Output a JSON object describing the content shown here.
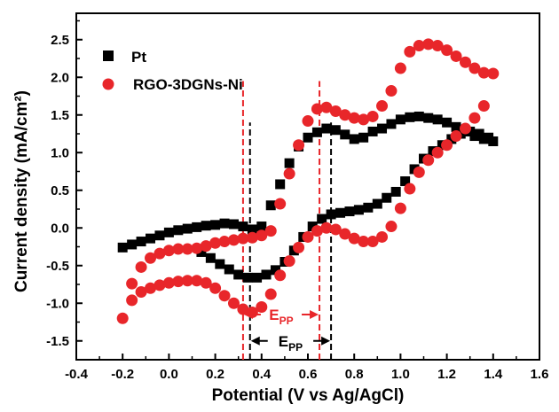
{
  "chart_data": {
    "type": "scatter",
    "xlabel": "Potential (V vs Ag/AgCl)",
    "ylabel": "Current density (mA/cm²)",
    "xlim": [
      -0.4,
      1.6
    ],
    "ylim": [
      -1.75,
      2.85
    ],
    "xticks": [
      -0.4,
      -0.2,
      0.0,
      0.2,
      0.4,
      0.6,
      0.8,
      1.0,
      1.2,
      1.4,
      1.6
    ],
    "xtick_labels": [
      "-0.4",
      "-0.2",
      "0.0",
      "0.2",
      "0.4",
      "0.6",
      "0.8",
      "1.0",
      "1.2",
      "1.4",
      "1.6"
    ],
    "yticks": [
      -1.5,
      -1.0,
      -0.5,
      0.0,
      0.5,
      1.0,
      1.5,
      2.0,
      2.5
    ],
    "ytick_labels": [
      "-1.5",
      "-1.0",
      "-0.5",
      "0.0",
      "0.5",
      "1.0",
      "1.5",
      "2.0",
      "2.5"
    ],
    "grid": false,
    "legend_position": "top-left",
    "series": [
      {
        "name": "Pt",
        "marker": "square",
        "color": "#000000",
        "points": [
          [
            -0.2,
            -0.26
          ],
          [
            -0.16,
            -0.22
          ],
          [
            -0.12,
            -0.18
          ],
          [
            -0.08,
            -0.14
          ],
          [
            -0.04,
            -0.1
          ],
          [
            0.0,
            -0.06
          ],
          [
            0.04,
            -0.03
          ],
          [
            0.08,
            -0.01
          ],
          [
            0.12,
            0.01
          ],
          [
            0.16,
            0.03
          ],
          [
            0.2,
            0.04
          ],
          [
            0.24,
            0.06
          ],
          [
            0.28,
            0.05
          ],
          [
            0.32,
            0.02
          ],
          [
            0.36,
            -0.02
          ],
          [
            0.4,
            0.02
          ],
          [
            0.44,
            0.3
          ],
          [
            0.48,
            0.58
          ],
          [
            0.52,
            0.86
          ],
          [
            0.56,
            1.08
          ],
          [
            0.6,
            1.2
          ],
          [
            0.64,
            1.27
          ],
          [
            0.68,
            1.32
          ],
          [
            0.72,
            1.3
          ],
          [
            0.76,
            1.24
          ],
          [
            0.8,
            1.18
          ],
          [
            0.84,
            1.2
          ],
          [
            0.88,
            1.28
          ],
          [
            0.92,
            1.32
          ],
          [
            0.96,
            1.38
          ],
          [
            1.0,
            1.44
          ],
          [
            1.04,
            1.47
          ],
          [
            1.08,
            1.48
          ],
          [
            1.12,
            1.46
          ],
          [
            1.16,
            1.44
          ],
          [
            1.2,
            1.4
          ],
          [
            1.24,
            1.34
          ],
          [
            1.28,
            1.28
          ],
          [
            1.32,
            1.22
          ],
          [
            1.36,
            1.18
          ],
          [
            1.4,
            1.15
          ],
          [
            1.38,
            1.2
          ],
          [
            1.34,
            1.25
          ],
          [
            1.3,
            1.28
          ],
          [
            1.26,
            1.25
          ],
          [
            1.22,
            1.18
          ],
          [
            1.18,
            1.1
          ],
          [
            1.14,
            1.02
          ],
          [
            1.1,
            0.92
          ],
          [
            1.06,
            0.78
          ],
          [
            1.02,
            0.62
          ],
          [
            0.98,
            0.48
          ],
          [
            0.94,
            0.4
          ],
          [
            0.9,
            0.32
          ],
          [
            0.86,
            0.27
          ],
          [
            0.82,
            0.24
          ],
          [
            0.78,
            0.22
          ],
          [
            0.74,
            0.2
          ],
          [
            0.7,
            0.18
          ],
          [
            0.66,
            0.12
          ],
          [
            0.62,
            0.02
          ],
          [
            0.58,
            -0.12
          ],
          [
            0.54,
            -0.3
          ],
          [
            0.5,
            -0.45
          ],
          [
            0.46,
            -0.56
          ],
          [
            0.42,
            -0.62
          ],
          [
            0.38,
            -0.66
          ],
          [
            0.34,
            -0.66
          ],
          [
            0.3,
            -0.62
          ],
          [
            0.26,
            -0.55
          ],
          [
            0.22,
            -0.48
          ],
          [
            0.18,
            -0.4
          ],
          [
            0.14,
            -0.32
          ]
        ]
      },
      {
        "name": "RGO-3DGNs-Ni",
        "marker": "circle",
        "color": "#e8262a",
        "points": [
          [
            -0.2,
            -1.2
          ],
          [
            -0.16,
            -0.96
          ],
          [
            -0.12,
            -0.85
          ],
          [
            -0.08,
            -0.8
          ],
          [
            -0.04,
            -0.76
          ],
          [
            0.0,
            -0.73
          ],
          [
            0.04,
            -0.71
          ],
          [
            0.08,
            -0.7
          ],
          [
            0.12,
            -0.7
          ],
          [
            0.16,
            -0.73
          ],
          [
            0.2,
            -0.8
          ],
          [
            0.24,
            -0.9
          ],
          [
            0.28,
            -1.0
          ],
          [
            0.32,
            -1.08
          ],
          [
            0.36,
            -1.12
          ],
          [
            0.4,
            -1.05
          ],
          [
            0.44,
            -0.88
          ],
          [
            0.48,
            -0.63
          ],
          [
            0.52,
            -0.44
          ],
          [
            0.56,
            -0.26
          ],
          [
            0.6,
            -0.12
          ],
          [
            0.64,
            -0.04
          ],
          [
            0.68,
            0.0
          ],
          [
            0.72,
            -0.02
          ],
          [
            0.76,
            -0.08
          ],
          [
            0.8,
            -0.14
          ],
          [
            0.84,
            -0.18
          ],
          [
            0.88,
            -0.18
          ],
          [
            0.92,
            -0.12
          ],
          [
            0.96,
            0.02
          ],
          [
            1.0,
            0.26
          ],
          [
            1.04,
            0.52
          ],
          [
            1.08,
            0.74
          ],
          [
            1.12,
            0.9
          ],
          [
            1.16,
            1.0
          ],
          [
            1.2,
            1.1
          ],
          [
            1.24,
            1.22
          ],
          [
            1.28,
            1.32
          ],
          [
            1.32,
            1.46
          ],
          [
            1.36,
            1.62
          ],
          [
            1.4,
            2.05
          ],
          [
            1.36,
            2.06
          ],
          [
            1.32,
            2.12
          ],
          [
            1.28,
            2.2
          ],
          [
            1.24,
            2.28
          ],
          [
            1.2,
            2.36
          ],
          [
            1.16,
            2.42
          ],
          [
            1.12,
            2.44
          ],
          [
            1.08,
            2.42
          ],
          [
            1.04,
            2.34
          ],
          [
            1.0,
            2.12
          ],
          [
            0.96,
            1.82
          ],
          [
            0.92,
            1.62
          ],
          [
            0.88,
            1.48
          ],
          [
            0.84,
            1.44
          ],
          [
            0.8,
            1.46
          ],
          [
            0.76,
            1.5
          ],
          [
            0.72,
            1.55
          ],
          [
            0.68,
            1.6
          ],
          [
            0.64,
            1.58
          ],
          [
            0.6,
            1.42
          ],
          [
            0.56,
            1.1
          ],
          [
            0.52,
            0.72
          ],
          [
            0.48,
            0.32
          ],
          [
            0.44,
            -0.04
          ],
          [
            0.4,
            -0.1
          ],
          [
            0.36,
            -0.13
          ],
          [
            0.32,
            -0.14
          ],
          [
            0.28,
            -0.16
          ],
          [
            0.24,
            -0.18
          ],
          [
            0.2,
            -0.2
          ],
          [
            0.16,
            -0.24
          ],
          [
            0.12,
            -0.27
          ],
          [
            0.08,
            -0.28
          ],
          [
            0.04,
            -0.28
          ],
          [
            0.0,
            -0.3
          ],
          [
            -0.04,
            -0.34
          ],
          [
            -0.08,
            -0.4
          ],
          [
            -0.12,
            -0.52
          ],
          [
            -0.16,
            -0.74
          ]
        ]
      }
    ],
    "annotations": [
      {
        "name": "epp-rgo",
        "label": "E",
        "subscript": "PP",
        "color": "#e8262a",
        "x_from": 0.32,
        "x_to": 0.65,
        "y": -1.15,
        "line_y_bottom": -1.75,
        "line_y_top": 1.95
      },
      {
        "name": "epp-pt",
        "label": "E",
        "subscript": "PP",
        "color": "#000000",
        "x_from": 0.35,
        "x_to": 0.7,
        "y": -1.5,
        "line_y_bottom": -1.75,
        "line_y_top": 1.4
      }
    ]
  }
}
